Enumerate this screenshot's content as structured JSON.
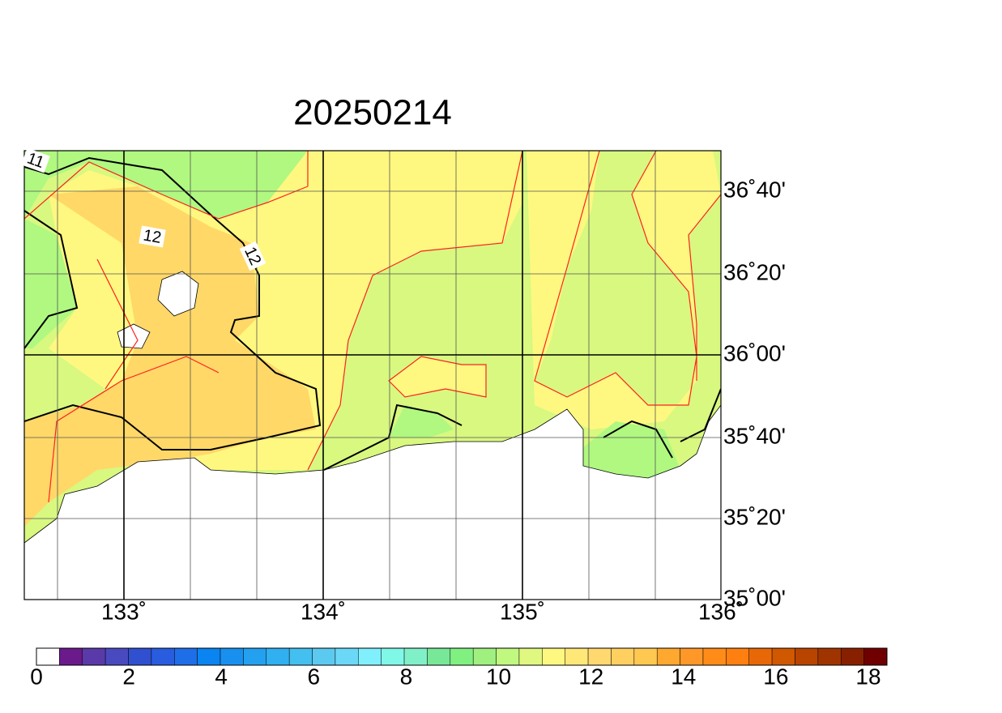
{
  "title": "20250214",
  "lon_labels": [
    "133˚",
    "134˚",
    "135˚",
    "136˚"
  ],
  "lat_labels": [
    "36˚40'",
    "36˚20'",
    "36˚00'",
    "35˚40'",
    "35˚20'",
    "35˚00'"
  ],
  "contour_labels": [
    "11",
    "12",
    "12"
  ],
  "colorbar": {
    "labels": [
      "0",
      "2",
      "4",
      "6",
      "8",
      "10",
      "12",
      "14",
      "16",
      "18"
    ],
    "colors": [
      "#ffffff",
      "#6a1a8a",
      "#5a3aa8",
      "#4a4ac0",
      "#3050d0",
      "#2a5ce0",
      "#1e6ee8",
      "#0a84f0",
      "#1890f0",
      "#24a0f0",
      "#30b0f0",
      "#44c0f0",
      "#5ccaf0",
      "#6cd8f8",
      "#80f0ff",
      "#80f8e8",
      "#80f0c8",
      "#78e898",
      "#80f080",
      "#a0f080",
      "#c0f880",
      "#e0f880",
      "#fff880",
      "#ffe878",
      "#ffd870",
      "#ffd060",
      "#ffc850",
      "#ffa830",
      "#ff9828",
      "#ff8c18",
      "#ff8010",
      "#e86808",
      "#d05800",
      "#b84400",
      "#a03400",
      "#882000",
      "#700000"
    ]
  }
}
